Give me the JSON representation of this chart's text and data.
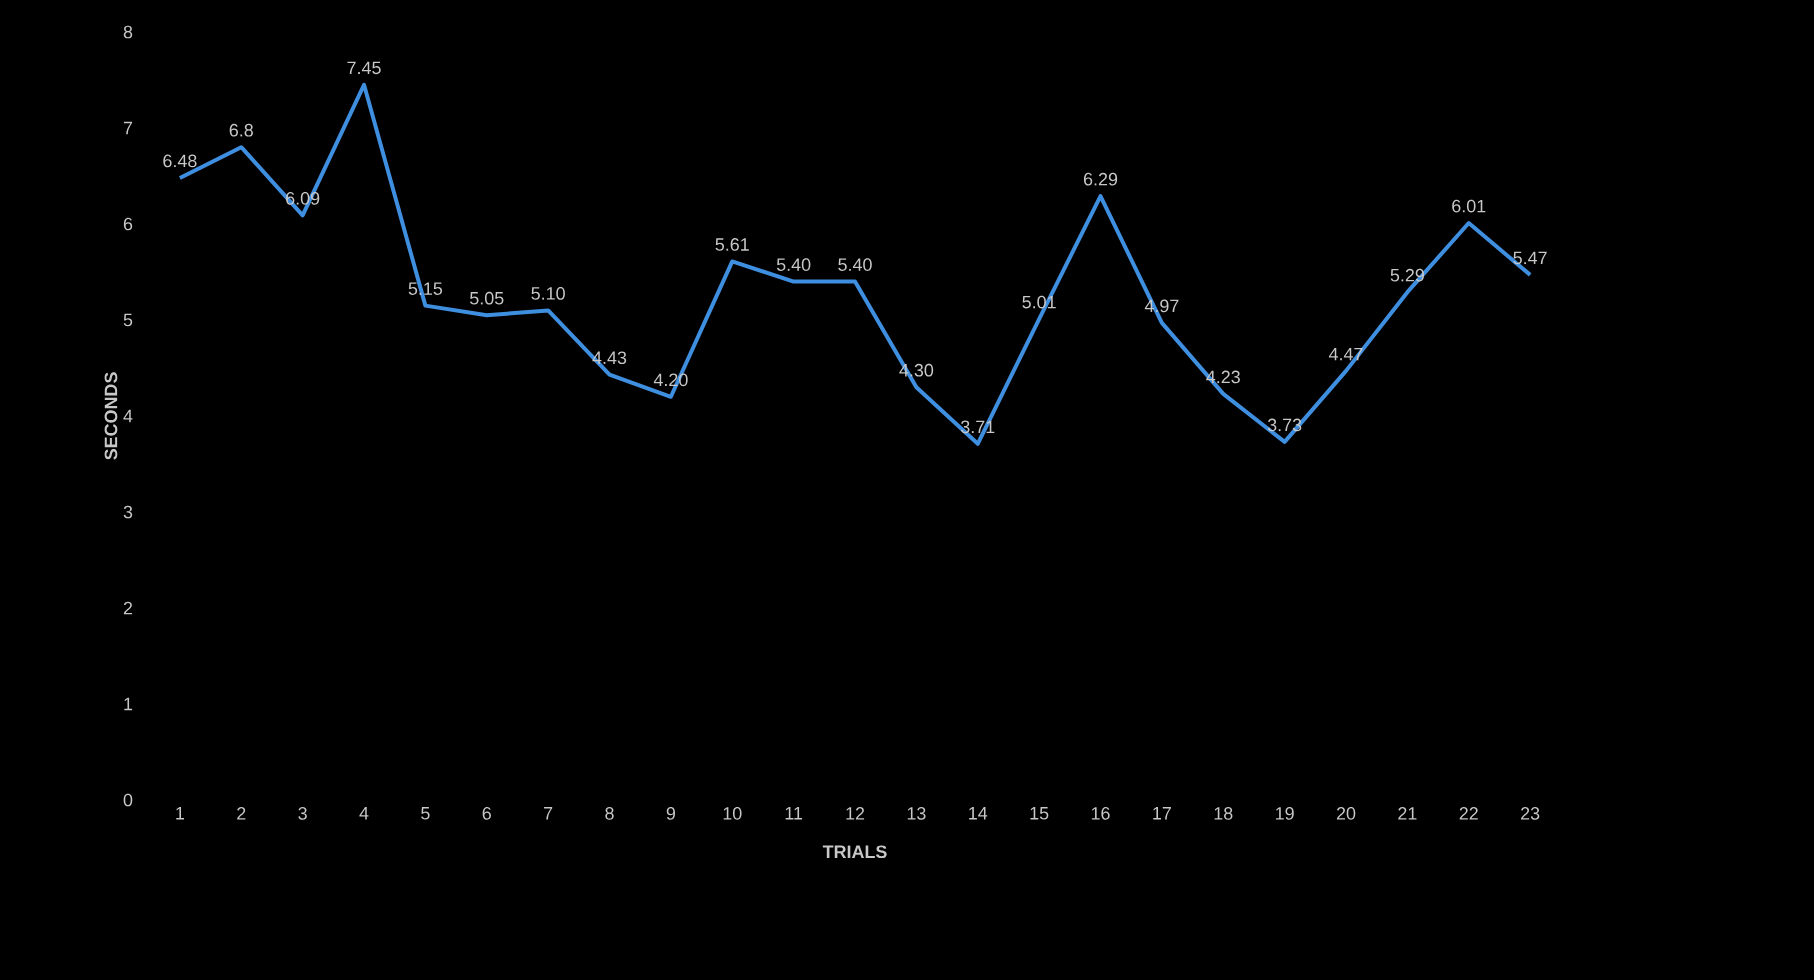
{
  "chart_data": {
    "type": "line",
    "xlabel": "TRIALS",
    "ylabel": "SECONDS",
    "categories": [
      "1",
      "2",
      "3",
      "4",
      "5",
      "6",
      "7",
      "8",
      "9",
      "10",
      "11",
      "12",
      "13",
      "14",
      "15",
      "16",
      "17",
      "18",
      "19",
      "20",
      "21",
      "22",
      "23"
    ],
    "series": [
      {
        "color": "#3f8fe0",
        "values": [
          6.48,
          6.8,
          6.09,
          7.45,
          5.15,
          5.05,
          5.1,
          4.43,
          4.2,
          5.61,
          5.4,
          5.4,
          4.3,
          3.71,
          5.01,
          6.29,
          4.97,
          4.23,
          3.73,
          4.47,
          5.29,
          6.01,
          5.47
        ],
        "value_labels": [
          "6.48",
          "6.8",
          "6.09",
          "7.45",
          "5.15",
          "5.05",
          "5.10",
          "4.43",
          "4.20",
          "5.61",
          "5.40",
          "5.40",
          "4.30",
          "3.71",
          "5.01",
          "6.29",
          "4.97",
          "4.23",
          "3.73",
          "4.47",
          "5.29",
          "6.01",
          "5.47"
        ]
      }
    ],
    "ylim": [
      0,
      8
    ],
    "yticks": [
      0,
      1,
      2,
      3,
      4,
      5,
      6,
      7,
      8
    ],
    "grid": false,
    "marker": "none",
    "line_style": "solid"
  }
}
